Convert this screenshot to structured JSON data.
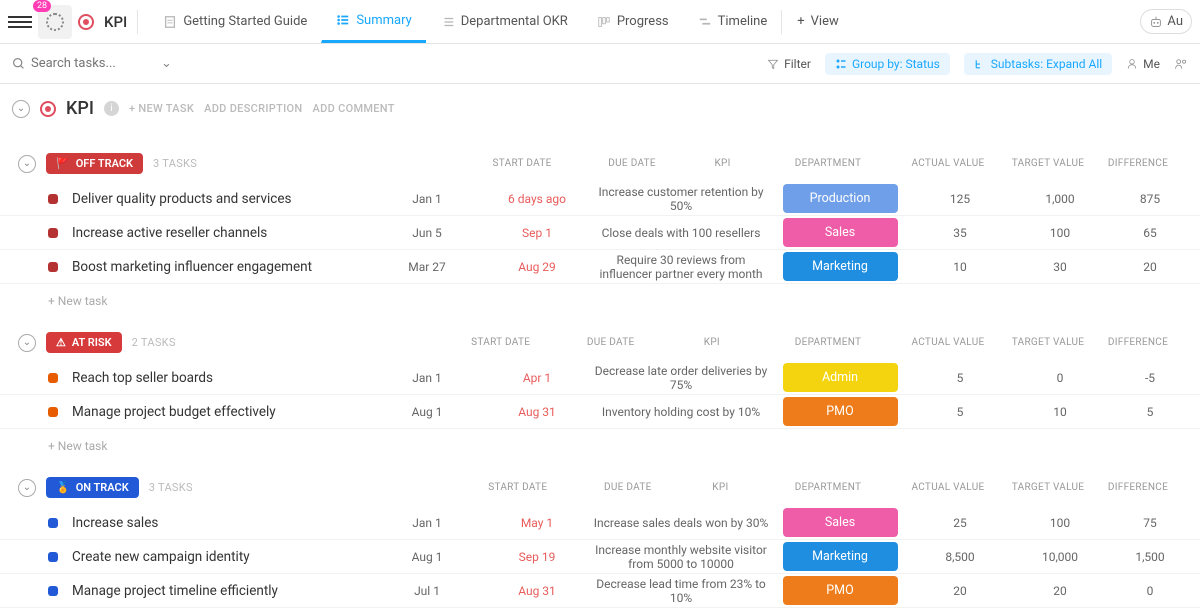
{
  "topbar": {
    "badge": "28",
    "title": "KPI",
    "tabs": [
      {
        "label": "Getting Started Guide"
      },
      {
        "label": "Summary"
      },
      {
        "label": "Departmental OKR"
      },
      {
        "label": "Progress"
      },
      {
        "label": "Timeline"
      }
    ],
    "view": "View",
    "au": "Au"
  },
  "subbar": {
    "search_placeholder": "Search tasks...",
    "filter": "Filter",
    "group_by": "Group by: Status",
    "subtasks": "Subtasks: Expand All",
    "me": "Me"
  },
  "header": {
    "title": "KPI",
    "new_task": "+ NEW TASK",
    "add_desc": "ADD DESCRIPTION",
    "add_comment": "ADD COMMENT"
  },
  "columns": {
    "start": "START DATE",
    "due": "DUE DATE",
    "kpi": "KPI",
    "dept": "DEPARTMENT",
    "actual": "ACTUAL VALUE",
    "target": "TARGET VALUE",
    "diff": "DIFFERENCE"
  },
  "new_task_label": "+ New task",
  "colors": {
    "off_track": "#cf3a3a",
    "at_risk": "#d63a3a",
    "on_track": "#2159d6",
    "sq_off": "#b53232",
    "sq_risk": "#e85c00",
    "sq_on": "#2159d6",
    "production": "#6f9fe8",
    "sales": "#ef5da8",
    "marketing": "#1f8de0",
    "admin": "#f4d40e",
    "pmo": "#ee7c1a"
  },
  "groups": [
    {
      "label": "OFF TRACK",
      "icon": "🚩",
      "color_key": "off_track",
      "sq_key": "sq_off",
      "count": "3 TASKS",
      "show_new": true,
      "tasks": [
        {
          "name": "Deliver quality products and services",
          "start": "Jan 1",
          "due": "6 days ago",
          "kpi": "Increase customer retention by 50%",
          "dept": "Production",
          "dept_key": "production",
          "actual": "125",
          "target": "1,000",
          "diff": "875"
        },
        {
          "name": "Increase active reseller channels",
          "start": "Jun 5",
          "due": "Sep 1",
          "kpi": "Close deals with 100 resellers",
          "dept": "Sales",
          "dept_key": "sales",
          "actual": "35",
          "target": "100",
          "diff": "65"
        },
        {
          "name": "Boost marketing influencer engagement",
          "start": "Mar 27",
          "due": "Aug 29",
          "kpi": "Require 30 reviews from influencer partner every month",
          "dept": "Marketing",
          "dept_key": "marketing",
          "actual": "10",
          "target": "30",
          "diff": "20"
        }
      ]
    },
    {
      "label": "AT RISK",
      "icon": "⚠",
      "color_key": "at_risk",
      "sq_key": "sq_risk",
      "count": "2 TASKS",
      "show_new": true,
      "tasks": [
        {
          "name": "Reach top seller boards",
          "start": "Jan 1",
          "due": "Apr 1",
          "kpi": "Decrease late order deliveries by 75%",
          "dept": "Admin",
          "dept_key": "admin",
          "actual": "5",
          "target": "0",
          "diff": "-5"
        },
        {
          "name": "Manage project budget effectively",
          "start": "Aug 1",
          "due": "Aug 31",
          "kpi": "Inventory holding cost by 10%",
          "dept": "PMO",
          "dept_key": "pmo",
          "actual": "5",
          "target": "10",
          "diff": "5"
        }
      ]
    },
    {
      "label": "ON TRACK",
      "icon": "🏅",
      "color_key": "on_track",
      "sq_key": "sq_on",
      "count": "3 TASKS",
      "show_new": false,
      "tasks": [
        {
          "name": "Increase sales",
          "start": "Jan 1",
          "due": "May 1",
          "kpi": "Increase sales deals won by 30%",
          "dept": "Sales",
          "dept_key": "sales",
          "actual": "25",
          "target": "100",
          "diff": "75"
        },
        {
          "name": "Create new campaign identity",
          "start": "Aug 1",
          "due": "Sep 19",
          "kpi": "Increase monthly website visitor from 5000 to 10000",
          "dept": "Marketing",
          "dept_key": "marketing",
          "actual": "8,500",
          "target": "10,000",
          "diff": "1,500"
        },
        {
          "name": "Manage project timeline efficiently",
          "start": "Jul 1",
          "due": "Aug 31",
          "kpi": "Decrease lead time from 23% to 10%",
          "dept": "PMO",
          "dept_key": "pmo",
          "actual": "20",
          "target": "20",
          "diff": "0"
        }
      ]
    }
  ]
}
